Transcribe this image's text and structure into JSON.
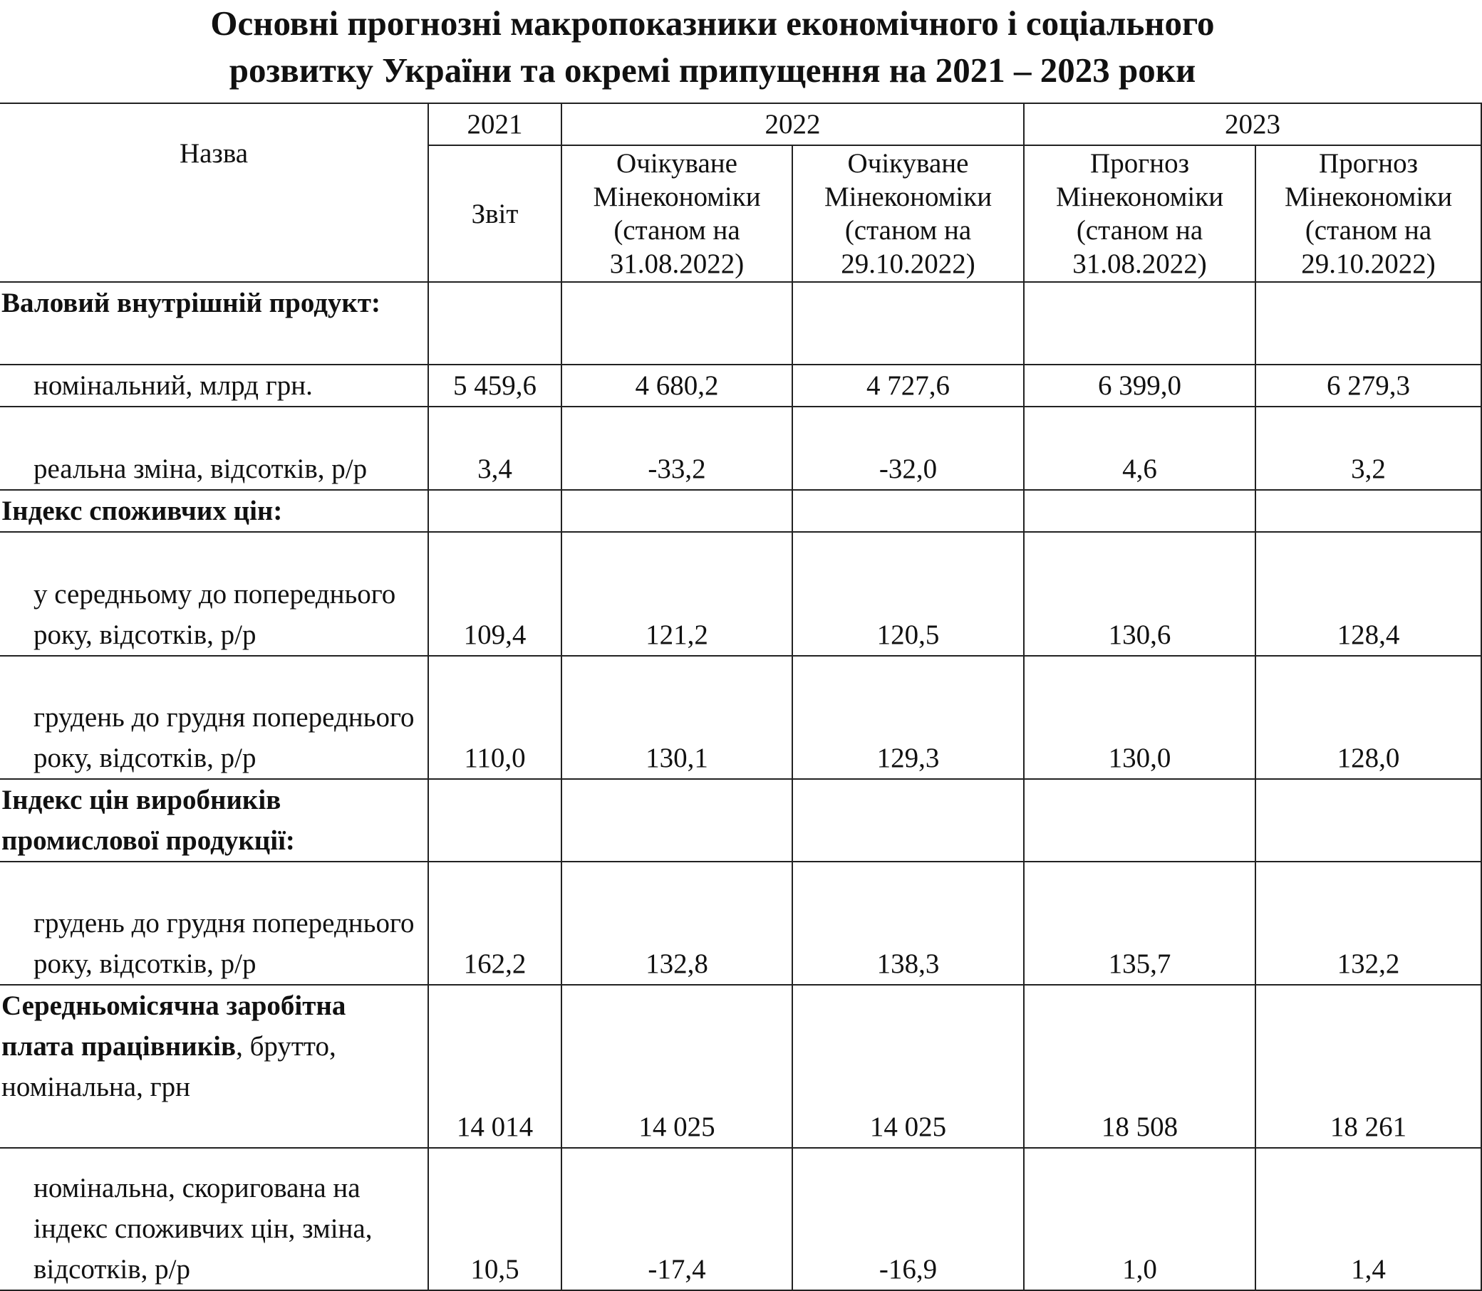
{
  "title": {
    "line1": "Основні прогнозні макропоказники економічного і соціального",
    "line2": "розвитку України та окремі припущення на 2021 – 2023 роки"
  },
  "header": {
    "name_col": "Назва",
    "years": [
      "2021",
      "2022",
      "2023"
    ],
    "columns": [
      "Звіт",
      "Очікуване Мінекономіки (станом на 31.08.2022)",
      "Очікуване Мінекономіки (станом на 29.10.2022)",
      "Прогноз Мінекономіки (станом на 31.08.2022)",
      "Прогноз Мінекономіки (станом на 29.10.2022)"
    ]
  },
  "rows": [
    {
      "label": "Валовий внутрішній продукт:",
      "bold": true,
      "values": [
        "",
        "",
        "",
        "",
        ""
      ]
    },
    {
      "label": "номінальний, млрд грн.",
      "values": [
        "5 459,6",
        "4 680,2",
        "4 727,6",
        "6 399,0",
        "6 279,3"
      ]
    },
    {
      "label": "реальна зміна, відсотків, р/р",
      "values": [
        "3,4",
        "-33,2",
        "-32,0",
        "4,6",
        "3,2"
      ]
    },
    {
      "label": "Індекс споживчих цін:",
      "bold": true,
      "values": [
        "",
        "",
        "",
        "",
        ""
      ]
    },
    {
      "label": "у середньому до попереднього року, відсотків, р/р",
      "values": [
        "109,4",
        "121,2",
        "120,5",
        "130,6",
        "128,4"
      ]
    },
    {
      "label": "грудень до грудня попереднього року, відсотків, р/р",
      "values": [
        "110,0",
        "130,1",
        "129,3",
        "130,0",
        "128,0"
      ]
    },
    {
      "label": "Індекс цін виробників промислової продукції:",
      "bold": true,
      "values": [
        "",
        "",
        "",
        "",
        ""
      ]
    },
    {
      "label": "грудень до грудня попереднього року, відсотків, р/р",
      "values": [
        "162,2",
        "132,8",
        "138,3",
        "135,7",
        "132,2"
      ]
    },
    {
      "label": "Середньомісячна заробітна плата працівників",
      "label_suffix": ", брутто, номінальна, грн",
      "bold": true,
      "values": [
        "14 014",
        "14 025",
        "14 025",
        "18 508",
        "18 261"
      ]
    },
    {
      "label": "номінальна, скоригована на індекс споживчих цін, зміна, відсотків, р/р",
      "values": [
        "10,5",
        "-17,4",
        "-16,9",
        "1,0",
        "1,4"
      ]
    }
  ]
}
